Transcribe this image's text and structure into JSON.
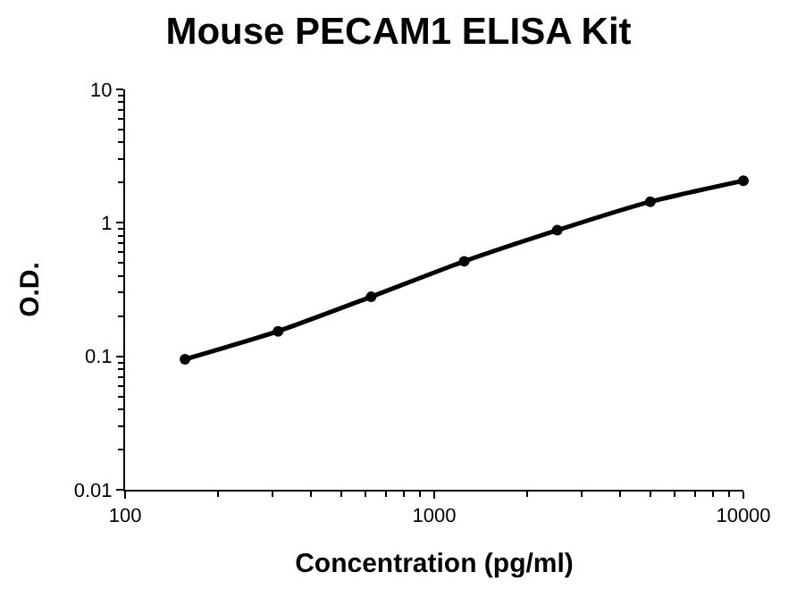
{
  "chart_data": {
    "type": "line",
    "title": "Mouse PECAM1 ELISA Kit",
    "xlabel": "Concentration (pg/ml)",
    "ylabel": "O.D.",
    "x": [
      156.25,
      312.5,
      625,
      1250,
      2500,
      5000,
      10000
    ],
    "series": [
      {
        "color": "#000000",
        "values": [
          0.095,
          0.154,
          0.279,
          0.515,
          0.88,
          1.44,
          2.07
        ]
      }
    ],
    "log": "xy",
    "xlim": [
      100,
      10000
    ],
    "ylim": [
      0.01,
      10
    ],
    "xticks": [
      100,
      1000,
      10000
    ],
    "yticks": [
      0.01,
      0.1,
      1,
      10
    ],
    "marker": "circle",
    "line_style": "solid",
    "legend": false
  }
}
